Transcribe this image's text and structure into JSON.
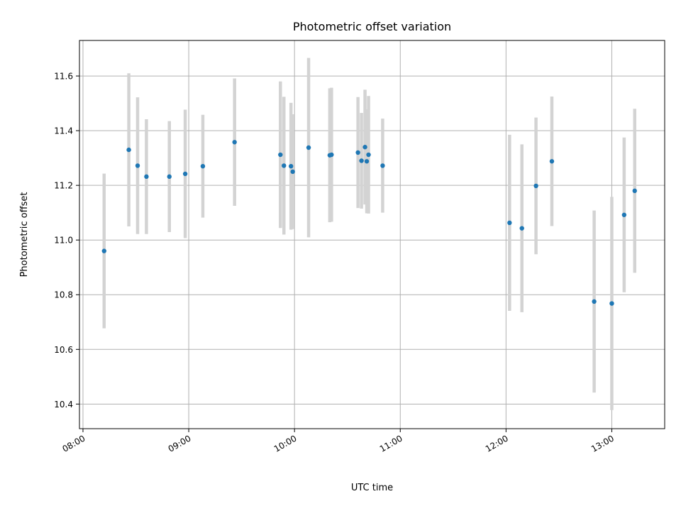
{
  "chart_data": {
    "type": "scatter",
    "title": "Photometric offset variation",
    "xlabel": "UTC time",
    "ylabel": "Photometric offset",
    "x_ticks": [
      "08:00",
      "09:00",
      "10:00",
      "11:00",
      "12:00",
      "13:00"
    ],
    "xlim": [
      "07:58",
      "13:30"
    ],
    "y_ticks": [
      "10.4",
      "10.6",
      "10.8",
      "11.0",
      "11.2",
      "11.4",
      "11.6"
    ],
    "ylim": [
      10.31,
      11.73
    ],
    "grid": true,
    "series": [
      {
        "points": [
          {
            "x": "08:12",
            "y": 10.96,
            "err": 0.283
          },
          {
            "x": "08:26",
            "y": 11.33,
            "err": 0.28
          },
          {
            "x": "08:31",
            "y": 11.272,
            "err": 0.25
          },
          {
            "x": "08:36",
            "y": 11.232,
            "err": 0.21
          },
          {
            "x": "08:49",
            "y": 11.232,
            "err": 0.203
          },
          {
            "x": "08:58",
            "y": 11.242,
            "err": 0.235
          },
          {
            "x": "09:08",
            "y": 11.27,
            "err": 0.188
          },
          {
            "x": "09:26",
            "y": 11.358,
            "err": 0.233
          },
          {
            "x": "09:52",
            "y": 11.312,
            "err": 0.268
          },
          {
            "x": "09:54",
            "y": 11.272,
            "err": 0.252
          },
          {
            "x": "09:58",
            "y": 11.27,
            "err": 0.232
          },
          {
            "x": "09:59",
            "y": 11.25,
            "err": 0.21
          },
          {
            "x": "10:08",
            "y": 11.338,
            "err": 0.328
          },
          {
            "x": "10:20",
            "y": 11.31,
            "err": 0.245
          },
          {
            "x": "10:21",
            "y": 11.312,
            "err": 0.245
          },
          {
            "x": "10:36",
            "y": 11.32,
            "err": 0.203
          },
          {
            "x": "10:38",
            "y": 11.29,
            "err": 0.175
          },
          {
            "x": "10:40",
            "y": 11.34,
            "err": 0.21
          },
          {
            "x": "10:41",
            "y": 11.288,
            "err": 0.19
          },
          {
            "x": "10:42",
            "y": 11.312,
            "err": 0.215
          },
          {
            "x": "10:50",
            "y": 11.272,
            "err": 0.172
          },
          {
            "x": "12:02",
            "y": 11.063,
            "err": 0.322
          },
          {
            "x": "12:09",
            "y": 11.043,
            "err": 0.307
          },
          {
            "x": "12:17",
            "y": 11.198,
            "err": 0.25
          },
          {
            "x": "12:26",
            "y": 11.288,
            "err": 0.237
          },
          {
            "x": "12:50",
            "y": 10.775,
            "err": 0.333
          },
          {
            "x": "13:00",
            "y": 10.768,
            "err": 0.39
          },
          {
            "x": "13:07",
            "y": 11.092,
            "err": 0.283
          },
          {
            "x": "13:13",
            "y": 11.18,
            "err": 0.3
          }
        ]
      }
    ],
    "colors": {
      "marker": "#1f77b4",
      "errorbar": "#d3d3d3",
      "grid": "#b0b0b0",
      "axes": "#000000"
    }
  }
}
